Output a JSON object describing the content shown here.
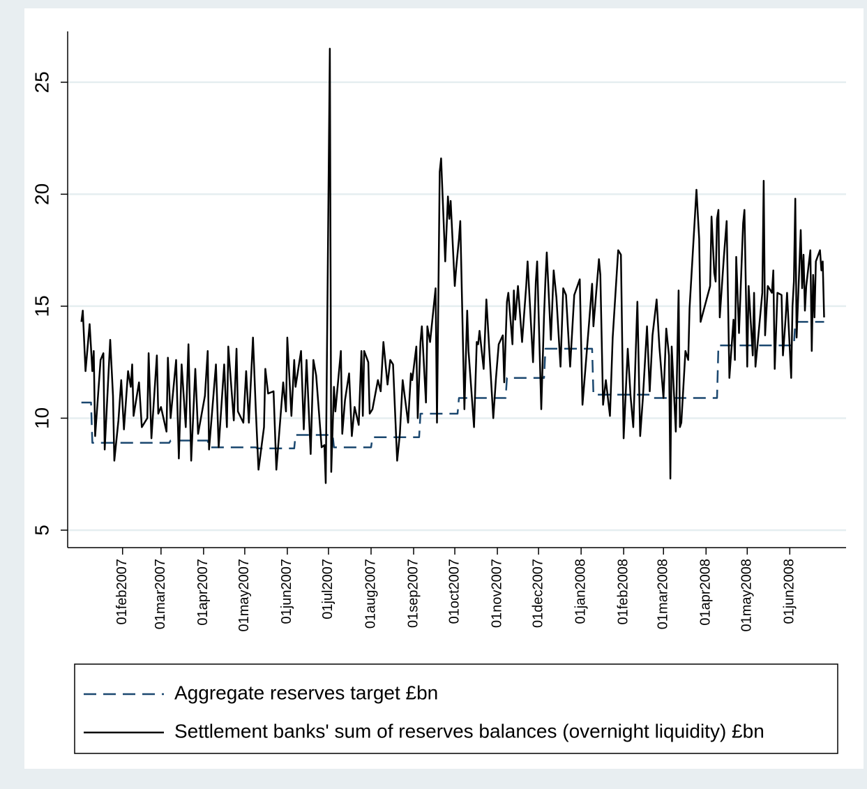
{
  "chart_data": {
    "type": "line",
    "xlim": [
      "2006-12-23",
      "2008-07-12"
    ],
    "ylim": [
      4.22,
      27.27
    ],
    "yticks": [
      5,
      10,
      15,
      20,
      25
    ],
    "grid": true,
    "legend": "bottom",
    "xticks": [
      {
        "value": "2007-02-01",
        "label": "01feb2007"
      },
      {
        "value": "2007-03-01",
        "label": "01mar2007"
      },
      {
        "value": "2007-04-01",
        "label": "01apr2007"
      },
      {
        "value": "2007-05-01",
        "label": "01may2007"
      },
      {
        "value": "2007-06-01",
        "label": "01jun2007"
      },
      {
        "value": "2007-07-01",
        "label": "01jul2007"
      },
      {
        "value": "2007-08-01",
        "label": "01aug2007"
      },
      {
        "value": "2007-09-01",
        "label": "01sep2007"
      },
      {
        "value": "2007-10-01",
        "label": "01oct2007"
      },
      {
        "value": "2007-11-01",
        "label": "01nov2007"
      },
      {
        "value": "2007-12-01",
        "label": "01dec2007"
      },
      {
        "value": "2008-01-01",
        "label": "01jan2008"
      },
      {
        "value": "2008-02-01",
        "label": "01feb2008"
      },
      {
        "value": "2008-03-01",
        "label": "01mar2008"
      },
      {
        "value": "2008-04-01",
        "label": "01apr2008"
      },
      {
        "value": "2008-05-01",
        "label": "01may2008"
      },
      {
        "value": "2008-06-01",
        "label": "01jun2008"
      }
    ],
    "series": [
      {
        "name": "Aggregate reserves target £bn",
        "color": "#1a476f",
        "dash": "18 10",
        "x": [
          "2007-01-02",
          "2007-01-09",
          "2007-01-10",
          "2007-03-07",
          "2007-03-08",
          "2007-04-04",
          "2007-04-05",
          "2007-05-09",
          "2007-05-10",
          "2007-06-06",
          "2007-06-07",
          "2007-07-04",
          "2007-07-05",
          "2007-08-01",
          "2007-08-02",
          "2007-09-05",
          "2007-09-06",
          "2007-10-03",
          "2007-10-04",
          "2007-11-07",
          "2007-11-08",
          "2007-12-05",
          "2007-12-06",
          "2008-01-09",
          "2008-01-10",
          "2008-02-22",
          "2008-02-23",
          "2008-04-09",
          "2008-04-10",
          "2008-06-04",
          "2008-06-05",
          "2008-06-26"
        ],
        "values": [
          10.7,
          10.7,
          8.9,
          8.9,
          9.0,
          9.0,
          8.7,
          8.7,
          8.65,
          8.65,
          9.25,
          9.25,
          8.7,
          8.7,
          9.15,
          9.15,
          10.2,
          10.2,
          10.9,
          10.9,
          11.8,
          11.8,
          13.1,
          13.1,
          11.05,
          11.05,
          10.9,
          10.9,
          13.25,
          13.25,
          14.3,
          14.3
        ]
      },
      {
        "name": "Settlement banks' sum of reserves balances (overnight liquidity) £bn",
        "color": "#000000",
        "dash": "none",
        "x": [
          "2007-01-02",
          "2007-01-03",
          "2007-01-05",
          "2007-01-08",
          "2007-01-10",
          "2007-01-11",
          "2007-01-12",
          "2007-01-16",
          "2007-01-18",
          "2007-01-19",
          "2007-01-23",
          "2007-01-25",
          "2007-01-26",
          "2007-01-29",
          "2007-01-31",
          "2007-02-02",
          "2007-02-05",
          "2007-02-07",
          "2007-02-08",
          "2007-02-09",
          "2007-02-13",
          "2007-02-15",
          "2007-02-19",
          "2007-02-20",
          "2007-02-22",
          "2007-02-26",
          "2007-02-27",
          "2007-03-01",
          "2007-03-05",
          "2007-03-06",
          "2007-03-08",
          "2007-03-12",
          "2007-03-14",
          "2007-03-16",
          "2007-03-19",
          "2007-03-21",
          "2007-03-23",
          "2007-03-26",
          "2007-03-28",
          "2007-04-02",
          "2007-04-04",
          "2007-04-05",
          "2007-04-10",
          "2007-04-12",
          "2007-04-16",
          "2007-04-18",
          "2007-04-19",
          "2007-04-23",
          "2007-04-25",
          "2007-04-26",
          "2007-04-30",
          "2007-05-02",
          "2007-05-04",
          "2007-05-07",
          "2007-05-09",
          "2007-05-11",
          "2007-05-15",
          "2007-05-16",
          "2007-05-18",
          "2007-05-22",
          "2007-05-24",
          "2007-05-29",
          "2007-05-31",
          "2007-06-01",
          "2007-06-04",
          "2007-06-06",
          "2007-06-07",
          "2007-06-11",
          "2007-06-13",
          "2007-06-15",
          "2007-06-18",
          "2007-06-20",
          "2007-06-22",
          "2007-06-26",
          "2007-06-28",
          "2007-06-29",
          "2007-07-02",
          "2007-07-03",
          "2007-07-05",
          "2007-07-06",
          "2007-07-10",
          "2007-07-11",
          "2007-07-13",
          "2007-07-16",
          "2007-07-18",
          "2007-07-20",
          "2007-07-23",
          "2007-07-25",
          "2007-07-26",
          "2007-07-27",
          "2007-07-30",
          "2007-07-31",
          "2007-08-02",
          "2007-08-06",
          "2007-08-08",
          "2007-08-10",
          "2007-08-13",
          "2007-08-15",
          "2007-08-17",
          "2007-08-20",
          "2007-08-22",
          "2007-08-24",
          "2007-08-28",
          "2007-08-30",
          "2007-08-31",
          "2007-09-03",
          "2007-09-04",
          "2007-09-06",
          "2007-09-07",
          "2007-09-10",
          "2007-09-11",
          "2007-09-13",
          "2007-09-17",
          "2007-09-18",
          "2007-09-20",
          "2007-09-21",
          "2007-09-24",
          "2007-09-26",
          "2007-09-27",
          "2007-09-28",
          "2007-10-01",
          "2007-10-02",
          "2007-10-04",
          "2007-10-05",
          "2007-10-08",
          "2007-10-10",
          "2007-10-11",
          "2007-10-15",
          "2007-10-17",
          "2007-10-18",
          "2007-10-19",
          "2007-10-22",
          "2007-10-24",
          "2007-10-29",
          "2007-10-31",
          "2007-11-02",
          "2007-11-05",
          "2007-11-06",
          "2007-11-08",
          "2007-11-09",
          "2007-11-12",
          "2007-11-13",
          "2007-11-14",
          "2007-11-16",
          "2007-11-19",
          "2007-11-22",
          "2007-11-23",
          "2007-11-27",
          "2007-11-29",
          "2007-11-30",
          "2007-12-03",
          "2007-12-05",
          "2007-12-06",
          "2007-12-07",
          "2007-12-10",
          "2007-12-12",
          "2007-12-14",
          "2007-12-17",
          "2007-12-19",
          "2007-12-21",
          "2007-12-24",
          "2007-12-27",
          "2007-12-31",
          "2008-01-02",
          "2008-01-04",
          "2008-01-07",
          "2008-01-09",
          "2008-01-10",
          "2008-01-14",
          "2008-01-15",
          "2008-01-17",
          "2008-01-19",
          "2008-01-22",
          "2008-01-24",
          "2008-01-28",
          "2008-01-30",
          "2008-02-01",
          "2008-02-04",
          "2008-02-06",
          "2008-02-08",
          "2008-02-11",
          "2008-02-13",
          "2008-02-15",
          "2008-02-18",
          "2008-02-20",
          "2008-02-22",
          "2008-02-25",
          "2008-02-27",
          "2008-03-01",
          "2008-03-03",
          "2008-03-05",
          "2008-03-06",
          "2008-03-07",
          "2008-03-10",
          "2008-03-12",
          "2008-03-13",
          "2008-03-14",
          "2008-03-17",
          "2008-03-19",
          "2008-03-20",
          "2008-03-25",
          "2008-03-27",
          "2008-03-28",
          "2008-04-04",
          "2008-04-05",
          "2008-04-07",
          "2008-04-08",
          "2008-04-09",
          "2008-04-10",
          "2008-04-11",
          "2008-04-14",
          "2008-04-16",
          "2008-04-18",
          "2008-04-21",
          "2008-04-22",
          "2008-04-23",
          "2008-04-25",
          "2008-04-28",
          "2008-04-29",
          "2008-05-01",
          "2008-05-02",
          "2008-05-05",
          "2008-05-06",
          "2008-05-07",
          "2008-05-09",
          "2008-05-12",
          "2008-05-13",
          "2008-05-14",
          "2008-05-16",
          "2008-05-19",
          "2008-05-20",
          "2008-05-21",
          "2008-05-23",
          "2008-05-26",
          "2008-05-27",
          "2008-05-29",
          "2008-05-30",
          "2008-06-02",
          "2008-06-03",
          "2008-06-04",
          "2008-06-05",
          "2008-06-06",
          "2008-06-09",
          "2008-06-10",
          "2008-06-11",
          "2008-06-12",
          "2008-06-13",
          "2008-06-16",
          "2008-06-17",
          "2008-06-18",
          "2008-06-19",
          "2008-06-20",
          "2008-06-23",
          "2008-06-24",
          "2008-06-25",
          "2008-06-26"
        ],
        "values": [
          14.3,
          14.8,
          12.1,
          14.2,
          12.1,
          13.0,
          9.2,
          12.6,
          12.9,
          8.6,
          13.5,
          11.0,
          8.1,
          9.9,
          11.7,
          9.5,
          12.1,
          11.4,
          12.4,
          10.1,
          11.6,
          9.6,
          10.0,
          12.9,
          9.1,
          12.8,
          10.2,
          10.5,
          9.4,
          12.7,
          10.0,
          12.6,
          8.2,
          12.4,
          9.6,
          13.3,
          8.1,
          12.2,
          9.3,
          11.0,
          13.0,
          8.6,
          12.4,
          8.7,
          12.4,
          9.6,
          13.2,
          9.9,
          13.1,
          10.3,
          9.8,
          12.1,
          9.8,
          13.6,
          10.4,
          7.7,
          9.6,
          12.2,
          11.1,
          11.2,
          7.7,
          11.6,
          10.3,
          13.6,
          10.1,
          12.6,
          11.4,
          13.0,
          9.5,
          12.6,
          8.4,
          12.6,
          11.9,
          8.7,
          8.8,
          7.1,
          26.5,
          7.6,
          11.4,
          10.3,
          13.0,
          9.3,
          10.8,
          12.0,
          9.2,
          10.5,
          9.7,
          13.0,
          10.1,
          13.0,
          12.5,
          10.2,
          10.4,
          11.7,
          11.2,
          13.4,
          11.5,
          12.6,
          12.4,
          8.1,
          9.3,
          11.7,
          9.8,
          12.0,
          11.7,
          13.2,
          10.0,
          13.4,
          14.1,
          10.7,
          14.1,
          13.4,
          15.8,
          9.8,
          21.0,
          21.6,
          17.0,
          19.9,
          18.9,
          19.7,
          15.9,
          16.7,
          18.0,
          18.8,
          10.4,
          14.8,
          13.0,
          9.6,
          13.4,
          13.3,
          13.9,
          12.2,
          15.3,
          10.0,
          11.8,
          13.3,
          13.7,
          11.6,
          15.2,
          15.6,
          13.3,
          15.7,
          14.4,
          15.9,
          13.4,
          15.9,
          17.0,
          12.5,
          16.1,
          17.0,
          10.4,
          14.6,
          16.2,
          17.4,
          13.5,
          16.6,
          15.4,
          12.3,
          15.8,
          15.5,
          12.3,
          15.5,
          16.2,
          10.6,
          12.1,
          14.4,
          16.0,
          14.1,
          17.1,
          16.4,
          10.6,
          11.7,
          10.1,
          13.6,
          17.5,
          17.3,
          9.1,
          13.1,
          11.0,
          9.6,
          15.2,
          9.2,
          10.9,
          14.1,
          11.2,
          13.7,
          15.3,
          13.2,
          10.9,
          14.0,
          12.8,
          7.3,
          13.2,
          9.4,
          15.7,
          9.6,
          9.8,
          13.0,
          12.6,
          14.9,
          20.2,
          18.0,
          14.3,
          15.9,
          19.0,
          16.5,
          16.1,
          18.9,
          19.3,
          14.5,
          17.2,
          18.8,
          11.8,
          14.4,
          12.6,
          17.2,
          13.8,
          18.7,
          19.3,
          12.3,
          15.9,
          12.8,
          15.6,
          12.3,
          13.6,
          15.6,
          20.6,
          13.7,
          15.9,
          15.6,
          16.6,
          12.2,
          15.6,
          15.5,
          12.8,
          14.5,
          15.6,
          11.8,
          15.0,
          16.1,
          19.8,
          13.6,
          18.4,
          15.8,
          17.3,
          14.8,
          15.9,
          17.5,
          13.0,
          16.4,
          14.5,
          17.0,
          17.5,
          16.6,
          17.0,
          14.5
        ]
      }
    ]
  }
}
